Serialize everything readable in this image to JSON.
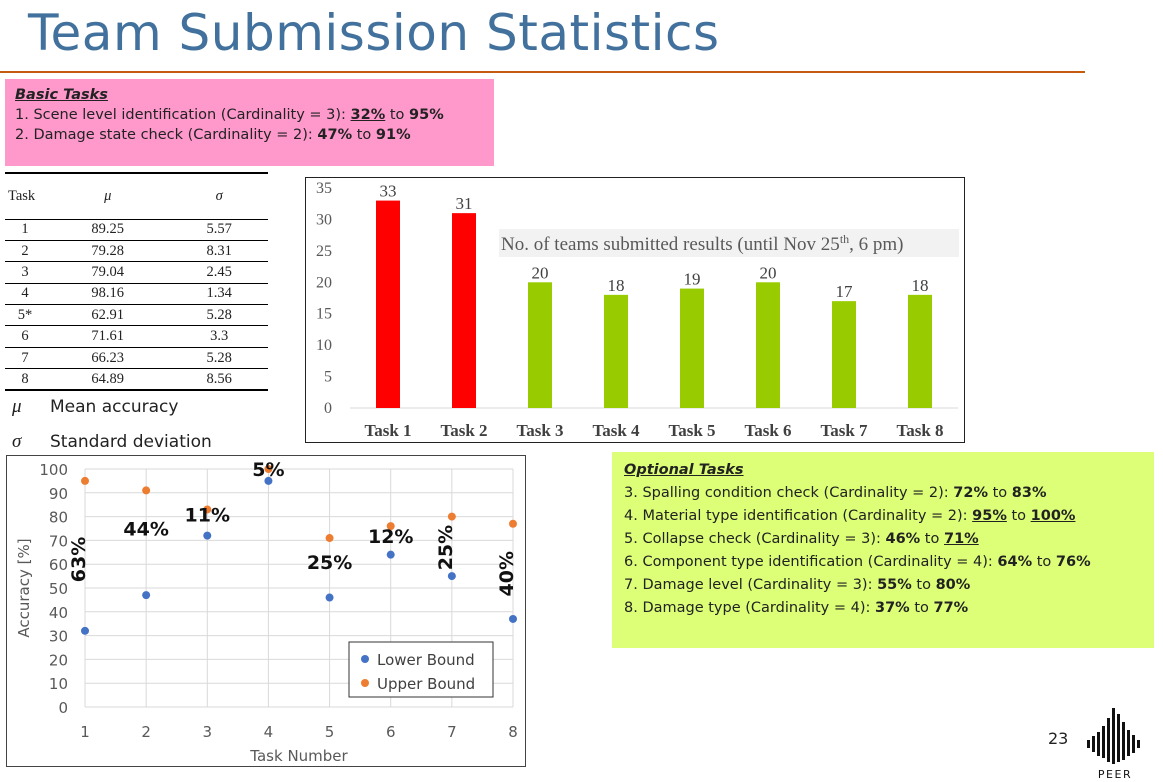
{
  "title": "Team Submission Statistics",
  "basic_tasks": {
    "header": "Basic Tasks",
    "line1": {
      "prefix": "1. Scene level identification (Cardinality = 3): ",
      "low": "32%",
      "mid": " to ",
      "high": "95%"
    },
    "line2": {
      "prefix": "2. Damage state check (Cardinality = 2): ",
      "low": "47%",
      "mid": " to ",
      "high": "91%"
    }
  },
  "optional_tasks": {
    "header": "Optional Tasks",
    "lines": [
      {
        "prefix": "3. Spalling condition check (Cardinality = 2):  ",
        "low": "72%",
        "mid": " to ",
        "high": "83%"
      },
      {
        "prefix": "4. Material type identification (Cardinality = 2): ",
        "low": "95%",
        "mid": " to ",
        "high": "100%"
      },
      {
        "prefix": "5. Collapse check (Cardinality = 3): ",
        "low": "46%",
        "mid": " to ",
        "high": "71%"
      },
      {
        "prefix": "6. Component type identification (Cardinality = 4): ",
        "low": "64%",
        "mid": " to ",
        "high": "76%"
      },
      {
        "prefix": "7. Damage level (Cardinality = 3): ",
        "low": "55%",
        "mid": " to ",
        "high": "80%"
      },
      {
        "prefix": "8. Damage type (Cardinality = 4): ",
        "low": "37%",
        "mid": " to ",
        "high": "77%"
      }
    ]
  },
  "table": {
    "headers": [
      "Task",
      "μ",
      "σ"
    ],
    "rows": [
      [
        "1",
        "89.25",
        "5.57"
      ],
      [
        "2",
        "79.28",
        "8.31"
      ],
      [
        "3",
        "79.04",
        "2.45"
      ],
      [
        "4",
        "98.16",
        "1.34"
      ],
      [
        "5*",
        "62.91",
        "5.28"
      ],
      [
        "6",
        "71.61",
        "3.3"
      ],
      [
        "7",
        "66.23",
        "5.28"
      ],
      [
        "8",
        "64.89",
        "8.56"
      ]
    ]
  },
  "symbol_legend": {
    "mu_symbol": "μ",
    "mu_label": "Mean accuracy",
    "sigma_symbol": "σ",
    "sigma_label": "Standard deviation"
  },
  "page_number": "23",
  "logo_text": "PEER",
  "colors": {
    "title": "#41719c",
    "rule": "#c55a11",
    "red_bar": "#ff0000",
    "green_bar": "#99cc00",
    "lower": "#4472c4",
    "upper": "#ed7d31",
    "basic_box": "#ff99cc",
    "optional_box": "#ddff77"
  },
  "chart_data": [
    {
      "type": "bar",
      "categories": [
        "Task 1",
        "Task 2",
        "Task 3",
        "Task 4",
        "Task 5",
        "Task 6",
        "Task 7",
        "Task 8"
      ],
      "values": [
        33,
        31,
        20,
        18,
        19,
        20,
        17,
        18
      ],
      "bar_colors": [
        "#ff0000",
        "#ff0000",
        "#99cc00",
        "#99cc00",
        "#99cc00",
        "#99cc00",
        "#99cc00",
        "#99cc00"
      ],
      "annotation": {
        "main": "No. of teams submitted results (until Nov 25",
        "sup": "th",
        "tail": ", 6 pm)"
      },
      "ylim": [
        0,
        35
      ],
      "yticks": [
        0,
        5,
        10,
        15,
        20,
        25,
        30,
        35
      ],
      "grid": false
    },
    {
      "type": "scatter",
      "x": [
        1,
        2,
        3,
        4,
        5,
        6,
        7,
        8
      ],
      "series": [
        {
          "name": "Lower Bound",
          "values": [
            32,
            47,
            72,
            95,
            46,
            64,
            55,
            37
          ]
        },
        {
          "name": "Upper Bound",
          "values": [
            95,
            91,
            83,
            100,
            71,
            76,
            80,
            77
          ]
        }
      ],
      "xlabel": "Task Number",
      "ylabel": "Accuracy [%]",
      "xlim": [
        1,
        8
      ],
      "ylim": [
        0,
        100
      ],
      "yticks": [
        0,
        10,
        20,
        30,
        40,
        50,
        60,
        70,
        80,
        90,
        100
      ],
      "grid": true,
      "legend": "bottom-right",
      "annotations": [
        {
          "text": "63%",
          "x": 1,
          "y": 62,
          "rotated": true
        },
        {
          "text": "44%",
          "x": 2,
          "y": 72,
          "rotated": false
        },
        {
          "text": "11%",
          "x": 3,
          "y": 78,
          "rotated": false
        },
        {
          "text": "5%",
          "x": 4,
          "y": 97,
          "rotated": false
        },
        {
          "text": "25%",
          "x": 5,
          "y": 58,
          "rotated": false
        },
        {
          "text": "12%",
          "x": 6,
          "y": 69,
          "rotated": false
        },
        {
          "text": "25%",
          "x": 7,
          "y": 67,
          "rotated": true
        },
        {
          "text": "40%",
          "x": 8,
          "y": 56,
          "rotated": true
        }
      ]
    }
  ]
}
